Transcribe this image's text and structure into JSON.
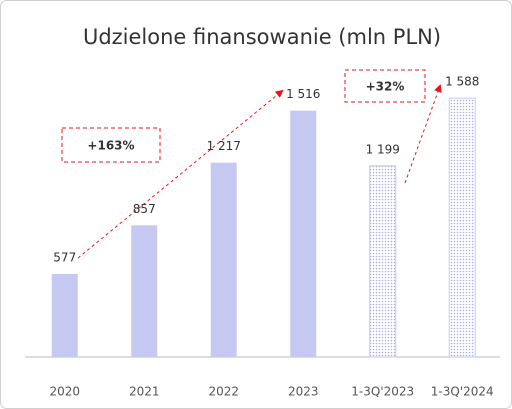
{
  "chart_data": {
    "type": "bar",
    "title": "Udzielone finansowanie (mln PLN)",
    "categories": [
      "2020",
      "2021",
      "2022",
      "2023",
      "1-3Q'2023",
      "1-3Q'2024"
    ],
    "values": [
      577,
      857,
      1217,
      1516,
      1199,
      1588
    ],
    "value_labels": [
      "577",
      "857",
      "1 217",
      "1 516",
      "1 199",
      "1 588"
    ],
    "patterned": [
      false,
      false,
      false,
      false,
      true,
      true
    ],
    "color": "#c5c8f0",
    "ylim": [
      100,
      1750
    ],
    "annotations": [
      "+163%",
      "+32%"
    ]
  }
}
